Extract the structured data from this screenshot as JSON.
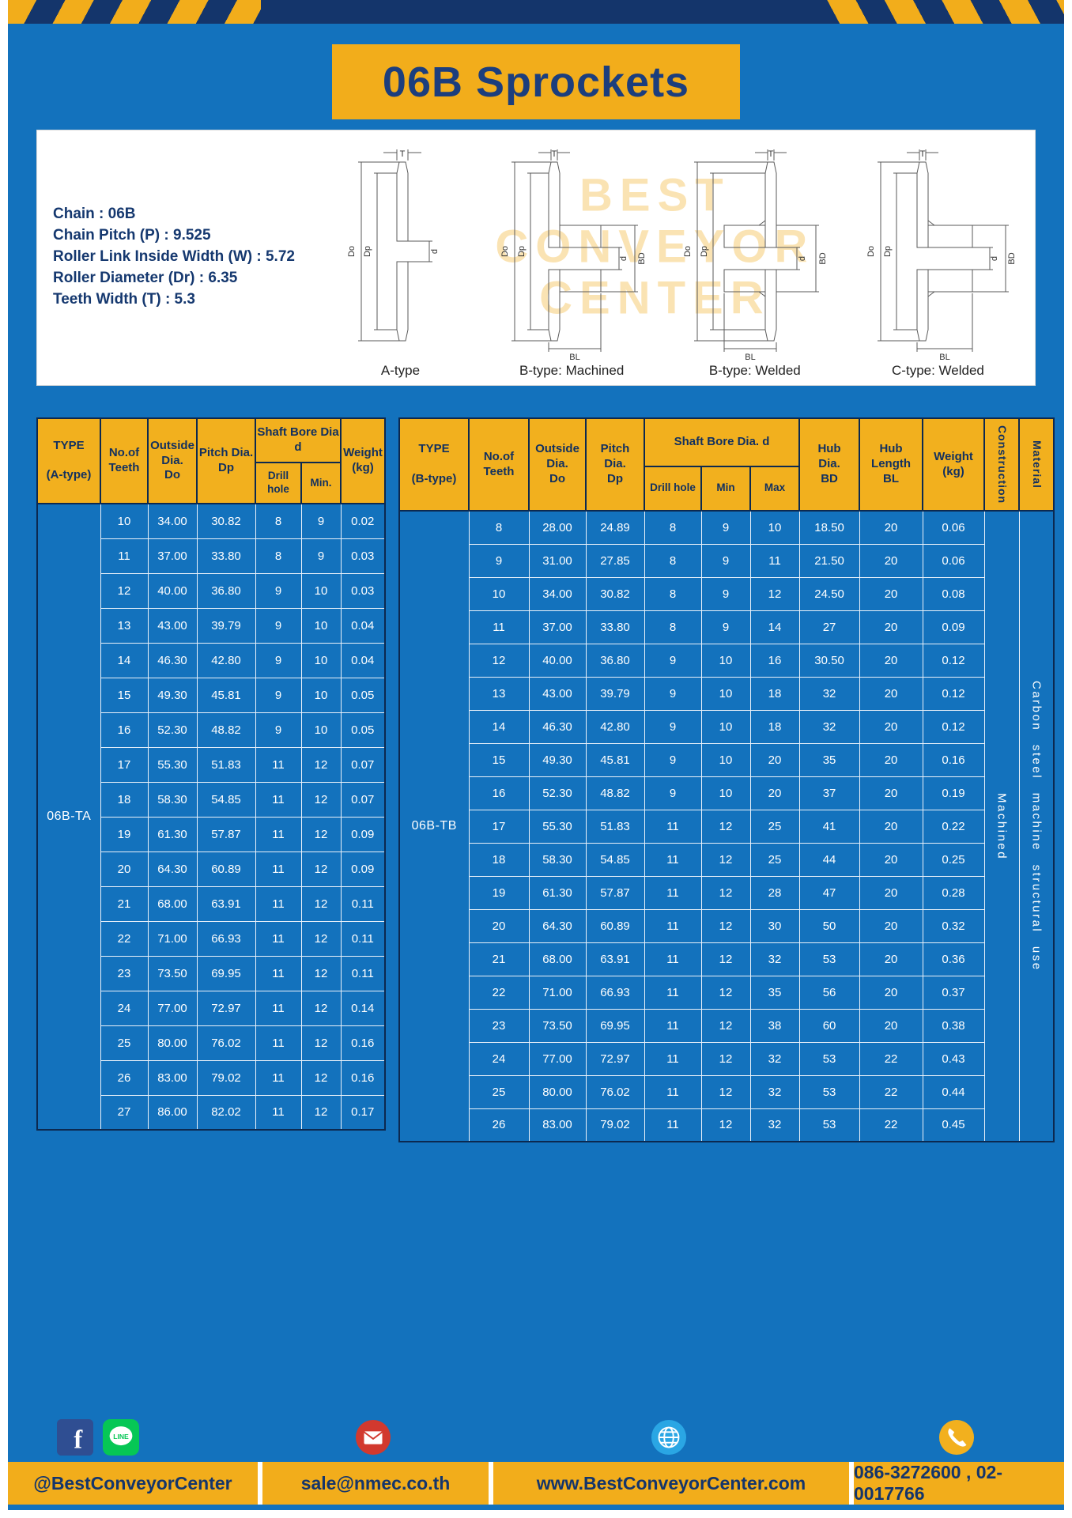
{
  "page": {
    "title": "06B Sprockets"
  },
  "colors": {
    "page_blue": "#1372bd",
    "accent_yellow": "#f2ad1b",
    "navy": "#14356b"
  },
  "specs": {
    "lines": [
      "Chain : 06B",
      "Chain Pitch (P) : 9.525",
      "Roller Link Inside Width (W) : 5.72",
      "Roller Diameter (Dr) : 6.35",
      "Teeth Width (T) : 5.3"
    ]
  },
  "drawings": {
    "watermark": "BEST\nCONVEYOR\nCENTER",
    "captions": [
      "A-type",
      "B-type: Machined",
      "B-type: Welded",
      "C-type: Welded"
    ],
    "dims": {
      "t": "T",
      "do": "Do",
      "dp": "Dp",
      "d": "d",
      "bd": "BD",
      "bl": "BL"
    }
  },
  "table_a": {
    "headers": {
      "type": "TYPE\n\n(A-type)",
      "teeth": "No.of\nTeeth",
      "outside": "Outside\nDia.\nDo",
      "pitch": "Pitch Dia.\nDp",
      "bore_group": "Shaft Bore Dia d",
      "drill": "Drill hole",
      "min": "Min.",
      "weight": "Weight\n(kg)"
    },
    "type_value": "06B-TA",
    "rows": [
      [
        "10",
        "34.00",
        "30.82",
        "8",
        "9",
        "0.02"
      ],
      [
        "11",
        "37.00",
        "33.80",
        "8",
        "9",
        "0.03"
      ],
      [
        "12",
        "40.00",
        "36.80",
        "9",
        "10",
        "0.03"
      ],
      [
        "13",
        "43.00",
        "39.79",
        "9",
        "10",
        "0.04"
      ],
      [
        "14",
        "46.30",
        "42.80",
        "9",
        "10",
        "0.04"
      ],
      [
        "15",
        "49.30",
        "45.81",
        "9",
        "10",
        "0.05"
      ],
      [
        "16",
        "52.30",
        "48.82",
        "9",
        "10",
        "0.05"
      ],
      [
        "17",
        "55.30",
        "51.83",
        "11",
        "12",
        "0.07"
      ],
      [
        "18",
        "58.30",
        "54.85",
        "11",
        "12",
        "0.07"
      ],
      [
        "19",
        "61.30",
        "57.87",
        "11",
        "12",
        "0.09"
      ],
      [
        "20",
        "64.30",
        "60.89",
        "11",
        "12",
        "0.09"
      ],
      [
        "21",
        "68.00",
        "63.91",
        "11",
        "12",
        "0.11"
      ],
      [
        "22",
        "71.00",
        "66.93",
        "11",
        "12",
        "0.11"
      ],
      [
        "23",
        "73.50",
        "69.95",
        "11",
        "12",
        "0.11"
      ],
      [
        "24",
        "77.00",
        "72.97",
        "11",
        "12",
        "0.14"
      ],
      [
        "25",
        "80.00",
        "76.02",
        "11",
        "12",
        "0.16"
      ],
      [
        "26",
        "83.00",
        "79.02",
        "11",
        "12",
        "0.16"
      ],
      [
        "27",
        "86.00",
        "82.02",
        "11",
        "12",
        "0.17"
      ]
    ]
  },
  "table_b": {
    "headers": {
      "type": "TYPE\n\n(B-type)",
      "teeth": "No.of\nTeeth",
      "outside": "Outside\nDia.\nDo",
      "pitch": "Pitch\nDia.\nDp",
      "bore_group": "Shaft Bore Dia. d",
      "drill": "Drill hole",
      "min": "Min",
      "max": "Max",
      "hub_dia": "Hub\nDia.\nBD",
      "hub_len": "Hub\nLength\nBL",
      "weight": "Weight\n(kg)",
      "construction": "Construction",
      "material": "Material"
    },
    "type_value": "06B-TB",
    "construction_value": "Machined",
    "material_value": "Carbon steel machine structural use",
    "rows": [
      [
        "8",
        "28.00",
        "24.89",
        "8",
        "9",
        "10",
        "18.50",
        "20",
        "0.06"
      ],
      [
        "9",
        "31.00",
        "27.85",
        "8",
        "9",
        "11",
        "21.50",
        "20",
        "0.06"
      ],
      [
        "10",
        "34.00",
        "30.82",
        "8",
        "9",
        "12",
        "24.50",
        "20",
        "0.08"
      ],
      [
        "11",
        "37.00",
        "33.80",
        "8",
        "9",
        "14",
        "27",
        "20",
        "0.09"
      ],
      [
        "12",
        "40.00",
        "36.80",
        "9",
        "10",
        "16",
        "30.50",
        "20",
        "0.12"
      ],
      [
        "13",
        "43.00",
        "39.79",
        "9",
        "10",
        "18",
        "32",
        "20",
        "0.12"
      ],
      [
        "14",
        "46.30",
        "42.80",
        "9",
        "10",
        "18",
        "32",
        "20",
        "0.12"
      ],
      [
        "15",
        "49.30",
        "45.81",
        "9",
        "10",
        "20",
        "35",
        "20",
        "0.16"
      ],
      [
        "16",
        "52.30",
        "48.82",
        "9",
        "10",
        "20",
        "37",
        "20",
        "0.19"
      ],
      [
        "17",
        "55.30",
        "51.83",
        "11",
        "12",
        "25",
        "41",
        "20",
        "0.22"
      ],
      [
        "18",
        "58.30",
        "54.85",
        "11",
        "12",
        "25",
        "44",
        "20",
        "0.25"
      ],
      [
        "19",
        "61.30",
        "57.87",
        "11",
        "12",
        "28",
        "47",
        "20",
        "0.28"
      ],
      [
        "20",
        "64.30",
        "60.89",
        "11",
        "12",
        "30",
        "50",
        "20",
        "0.32"
      ],
      [
        "21",
        "68.00",
        "63.91",
        "11",
        "12",
        "32",
        "53",
        "20",
        "0.36"
      ],
      [
        "22",
        "71.00",
        "66.93",
        "11",
        "12",
        "35",
        "56",
        "20",
        "0.37"
      ],
      [
        "23",
        "73.50",
        "69.95",
        "11",
        "12",
        "38",
        "60",
        "20",
        "0.38"
      ],
      [
        "24",
        "77.00",
        "72.97",
        "11",
        "12",
        "32",
        "53",
        "22",
        "0.43"
      ],
      [
        "25",
        "80.00",
        "76.02",
        "11",
        "12",
        "32",
        "53",
        "22",
        "0.44"
      ],
      [
        "26",
        "83.00",
        "79.02",
        "11",
        "12",
        "32",
        "53",
        "22",
        "0.45"
      ]
    ]
  },
  "footer": {
    "sections": [
      {
        "icon": "facebook-icon,line-icon",
        "label": "@BestConveyorCenter"
      },
      {
        "icon": "email-icon",
        "label": "sale@nmec.co.th"
      },
      {
        "icon": "globe-icon",
        "label": "www.BestConveyorCenter.com"
      },
      {
        "icon": "phone-icon",
        "label": "086-3272600 , 02-0017766"
      }
    ]
  }
}
